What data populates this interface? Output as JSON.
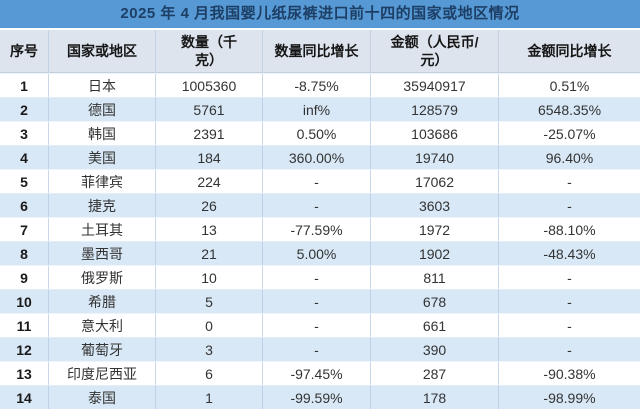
{
  "chart_data": {
    "type": "table",
    "title": "2025 年 4 月我国婴儿纸尿裤进口前十四的国家或地区情况",
    "columns": [
      "序号",
      "国家或地区",
      "数量（千\n克）",
      "数量同比增长",
      "金额（人民币/\n元）",
      "金额同比增长"
    ],
    "rows": [
      [
        "1",
        "日本",
        "1005360",
        "-8.75%",
        "35940917",
        "0.51%"
      ],
      [
        "2",
        "德国",
        "5761",
        "inf%",
        "128579",
        "6548.35%"
      ],
      [
        "3",
        "韩国",
        "2391",
        "0.50%",
        "103686",
        "-25.07%"
      ],
      [
        "4",
        "美国",
        "184",
        "360.00%",
        "19740",
        "96.40%"
      ],
      [
        "5",
        "菲律宾",
        "224",
        "-",
        "17062",
        "-"
      ],
      [
        "6",
        "捷克",
        "26",
        "-",
        "3603",
        "-"
      ],
      [
        "7",
        "土耳其",
        "13",
        "-77.59%",
        "1972",
        "-88.10%"
      ],
      [
        "8",
        "墨西哥",
        "21",
        "5.00%",
        "1902",
        "-48.43%"
      ],
      [
        "9",
        "俄罗斯",
        "10",
        "-",
        "811",
        "-"
      ],
      [
        "10",
        "希腊",
        "5",
        "-",
        "678",
        "-"
      ],
      [
        "11",
        "意大利",
        "0",
        "-",
        "661",
        "-"
      ],
      [
        "12",
        "葡萄牙",
        "3",
        "-",
        "390",
        "-"
      ],
      [
        "13",
        "印度尼西亚",
        "6",
        "-97.45%",
        "287",
        "-90.38%"
      ],
      [
        "14",
        "泰国",
        "1",
        "-99.59%",
        "178",
        "-98.99%"
      ]
    ],
    "layout": {
      "legend": "none",
      "grid": "on",
      "row_striping": "alternating"
    },
    "colors": {
      "title_bar_bg": "#5699d4",
      "title_text": "#1d3f66",
      "header_bg": "#dde4ee",
      "row_bg_odd": "#ffffff",
      "row_bg_even": "#d8e8f6",
      "grid_line": "#c8d8e8",
      "body_text": "#333333",
      "header_text": "#161616"
    }
  }
}
